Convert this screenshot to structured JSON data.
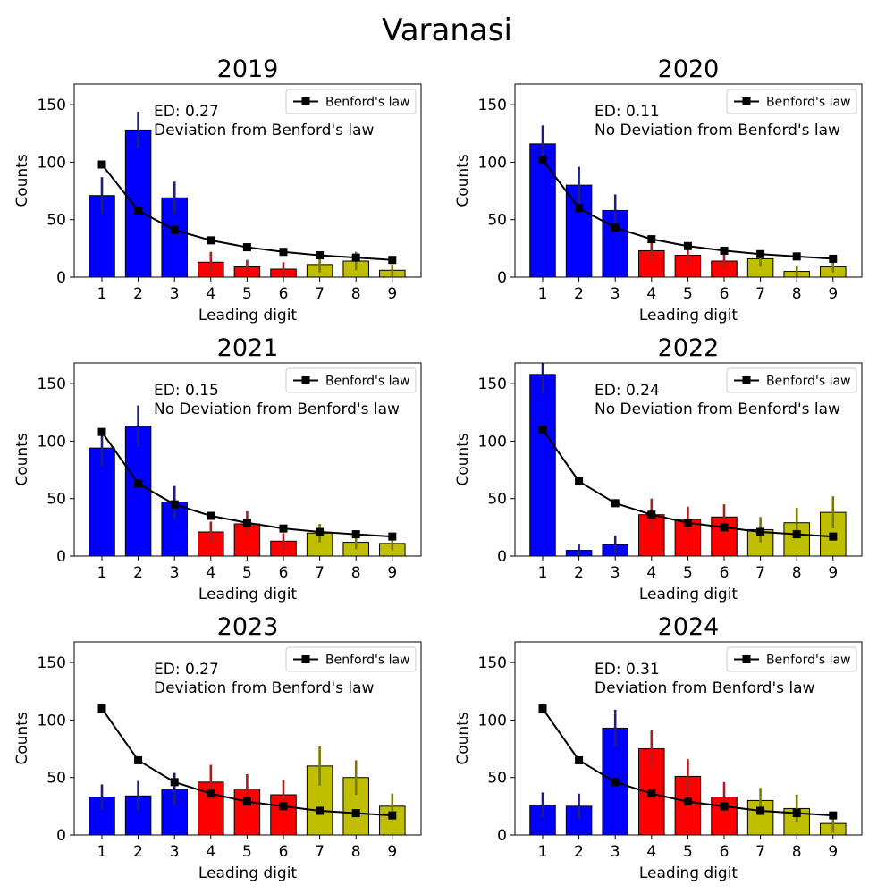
{
  "figure_title": "Varanasi",
  "legend_label": "Benford's law",
  "chart_data": [
    {
      "type": "bar",
      "title": "2019",
      "xlabel": "Leading digit",
      "ylabel": "Counts",
      "ylim": [
        0,
        168
      ],
      "yticks": [
        0,
        50,
        100,
        150
      ],
      "categories": [
        "1",
        "2",
        "3",
        "4",
        "5",
        "6",
        "7",
        "8",
        "9"
      ],
      "values": [
        71,
        128,
        69,
        13,
        9,
        7,
        11,
        14,
        6
      ],
      "errors": [
        16,
        16,
        14,
        9,
        6,
        6,
        7,
        8,
        5
      ],
      "benford": [
        98,
        58,
        41,
        32,
        26,
        22,
        19,
        17,
        15
      ],
      "annotation_ed": "ED: 0.27",
      "annotation_status": "Deviation from Benford's law",
      "legend_position": "top-right"
    },
    {
      "type": "bar",
      "title": "2020",
      "xlabel": "Leading digit",
      "ylabel": "Counts",
      "ylim": [
        0,
        168
      ],
      "yticks": [
        0,
        50,
        100,
        150
      ],
      "categories": [
        "1",
        "2",
        "3",
        "4",
        "5",
        "6",
        "7",
        "8",
        "9"
      ],
      "values": [
        116,
        80,
        58,
        23,
        19,
        14,
        16,
        5,
        9
      ],
      "errors": [
        16,
        16,
        14,
        8,
        7,
        6,
        7,
        5,
        5
      ],
      "benford": [
        102,
        60,
        43,
        33,
        27,
        23,
        20,
        18,
        16
      ],
      "annotation_ed": "ED: 0.11",
      "annotation_status": "No Deviation from Benford's law",
      "legend_position": "top-right"
    },
    {
      "type": "bar",
      "title": "2021",
      "xlabel": "Leading digit",
      "ylabel": "Counts",
      "ylim": [
        0,
        168
      ],
      "yticks": [
        0,
        50,
        100,
        150
      ],
      "categories": [
        "1",
        "2",
        "3",
        "4",
        "5",
        "6",
        "7",
        "8",
        "9"
      ],
      "values": [
        94,
        113,
        47,
        21,
        28,
        13,
        20,
        12,
        11
      ],
      "errors": [
        16,
        18,
        14,
        9,
        11,
        7,
        8,
        6,
        6
      ],
      "benford": [
        108,
        63,
        45,
        35,
        29,
        24,
        21,
        19,
        17
      ],
      "annotation_ed": "ED: 0.15",
      "annotation_status": "No Deviation from Benford's law",
      "legend_position": "top-right"
    },
    {
      "type": "bar",
      "title": "2022",
      "xlabel": "Leading digit",
      "ylabel": "Counts",
      "ylim": [
        0,
        168
      ],
      "yticks": [
        0,
        50,
        100,
        150
      ],
      "categories": [
        "1",
        "2",
        "3",
        "4",
        "5",
        "6",
        "7",
        "8",
        "9"
      ],
      "values": [
        158,
        5,
        10,
        36,
        32,
        34,
        23,
        29,
        38
      ],
      "errors": [
        17,
        5,
        8,
        14,
        11,
        11,
        11,
        13,
        14
      ],
      "benford": [
        110,
        65,
        46,
        36,
        29,
        25,
        21,
        19,
        17
      ],
      "annotation_ed": "ED: 0.24",
      "annotation_status": "No Deviation from Benford's law",
      "legend_position": "top-right"
    },
    {
      "type": "bar",
      "title": "2023",
      "xlabel": "Leading digit",
      "ylabel": "Counts",
      "ylim": [
        0,
        168
      ],
      "yticks": [
        0,
        50,
        100,
        150
      ],
      "categories": [
        "1",
        "2",
        "3",
        "4",
        "5",
        "6",
        "7",
        "8",
        "9"
      ],
      "values": [
        33,
        34,
        40,
        46,
        40,
        35,
        60,
        50,
        25
      ],
      "errors": [
        11,
        13,
        14,
        15,
        13,
        13,
        17,
        15,
        11
      ],
      "benford": [
        110,
        65,
        46,
        36,
        29,
        25,
        21,
        19,
        17
      ],
      "annotation_ed": "ED: 0.27",
      "annotation_status": "Deviation from Benford's law",
      "legend_position": "top-right"
    },
    {
      "type": "bar",
      "title": "2024",
      "xlabel": "Leading digit",
      "ylabel": "Counts",
      "ylim": [
        0,
        168
      ],
      "yticks": [
        0,
        50,
        100,
        150
      ],
      "categories": [
        "1",
        "2",
        "3",
        "4",
        "5",
        "6",
        "7",
        "8",
        "9"
      ],
      "values": [
        26,
        25,
        93,
        75,
        51,
        33,
        30,
        23,
        10
      ],
      "errors": [
        11,
        11,
        16,
        16,
        15,
        13,
        11,
        12,
        8
      ],
      "benford": [
        110,
        65,
        46,
        36,
        29,
        25,
        21,
        19,
        17
      ],
      "annotation_ed": "ED: 0.31",
      "annotation_status": "Deviation from Benford's law",
      "legend_position": "top-right"
    }
  ],
  "colors": {
    "group_1_3": "#0000ff",
    "group_4_6": "#ff0000",
    "group_7_9": "#bfbf00",
    "error_1_3": "#1f1f7a",
    "error_4_6": "#a82020",
    "error_7_9": "#7a7a00",
    "benford_line": "#000000"
  }
}
